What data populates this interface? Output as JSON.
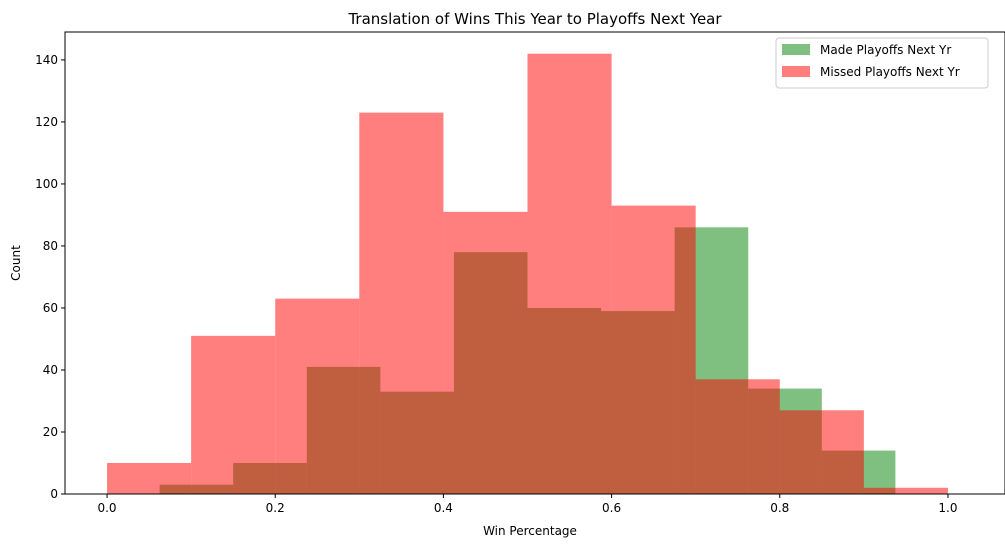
{
  "chart_data": {
    "type": "bar",
    "title": "Translation of Wins This Year to Playoffs Next Year",
    "xlabel": "Win Percentage",
    "ylabel": "Count",
    "xlim": [
      -0.05,
      1.05
    ],
    "ylim": [
      0,
      149
    ],
    "xticks": [
      0.0,
      0.2,
      0.4,
      0.6,
      0.8,
      1.0
    ],
    "xtick_labels": [
      "0.0",
      "0.2",
      "0.4",
      "0.6",
      "0.8",
      "1.0"
    ],
    "yticks": [
      0,
      20,
      40,
      60,
      80,
      100,
      120,
      140
    ],
    "ytick_labels": [
      "0",
      "20",
      "40",
      "60",
      "80",
      "100",
      "120",
      "140"
    ],
    "grid": false,
    "legend_position": "top-right",
    "series": [
      {
        "name": "Made Playoffs Next Yr",
        "color": "#008000",
        "opacity": 0.5,
        "bin_edges": [
          0.0625,
          0.15,
          0.2375,
          0.325,
          0.4125,
          0.5,
          0.5875,
          0.675,
          0.7625,
          0.85,
          0.9375
        ],
        "counts": [
          3,
          10,
          41,
          33,
          78,
          60,
          59,
          86,
          34,
          14
        ]
      },
      {
        "name": "Missed Playoffs Next Yr",
        "color": "#ff0000",
        "opacity": 0.5,
        "bin_edges": [
          0.0,
          0.1,
          0.2,
          0.3,
          0.4,
          0.5,
          0.6,
          0.7,
          0.8,
          0.9,
          1.0
        ],
        "counts": [
          10,
          51,
          63,
          123,
          91,
          142,
          93,
          37,
          27,
          2
        ]
      }
    ]
  }
}
